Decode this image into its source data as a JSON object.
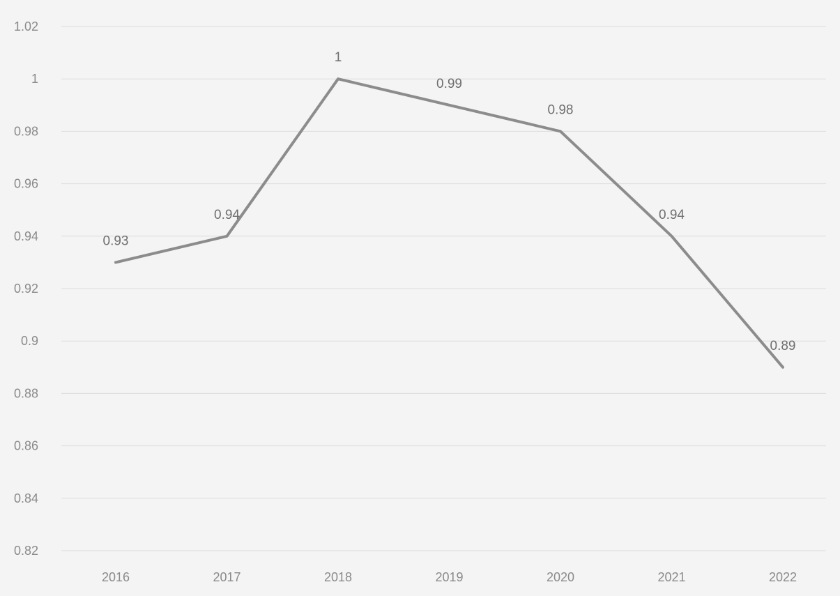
{
  "chart_data": {
    "type": "line",
    "title": "",
    "xlabel": "",
    "ylabel": "",
    "categories": [
      "2016",
      "2017",
      "2018",
      "2019",
      "2020",
      "2021",
      "2022"
    ],
    "series": [
      {
        "values": [
          0.93,
          0.94,
          1,
          0.99,
          0.98,
          0.94,
          0.89
        ]
      }
    ],
    "data_labels": [
      "0.93",
      "0.94",
      "1",
      "0.99",
      "0.98",
      "0.94",
      "0.89"
    ],
    "y_ticks": [
      "0.82",
      "0.84",
      "0.86",
      "0.88",
      "0.9",
      "0.92",
      "0.94",
      "0.96",
      "0.98",
      "1",
      "1.02"
    ],
    "ylim": [
      0.82,
      1.02
    ],
    "grid": true,
    "legend": "none",
    "colors": {
      "line": "#8c8c8c",
      "grid": "#dcdcdc",
      "text": "#8a8a8a",
      "background": "#f4f4f4"
    }
  }
}
